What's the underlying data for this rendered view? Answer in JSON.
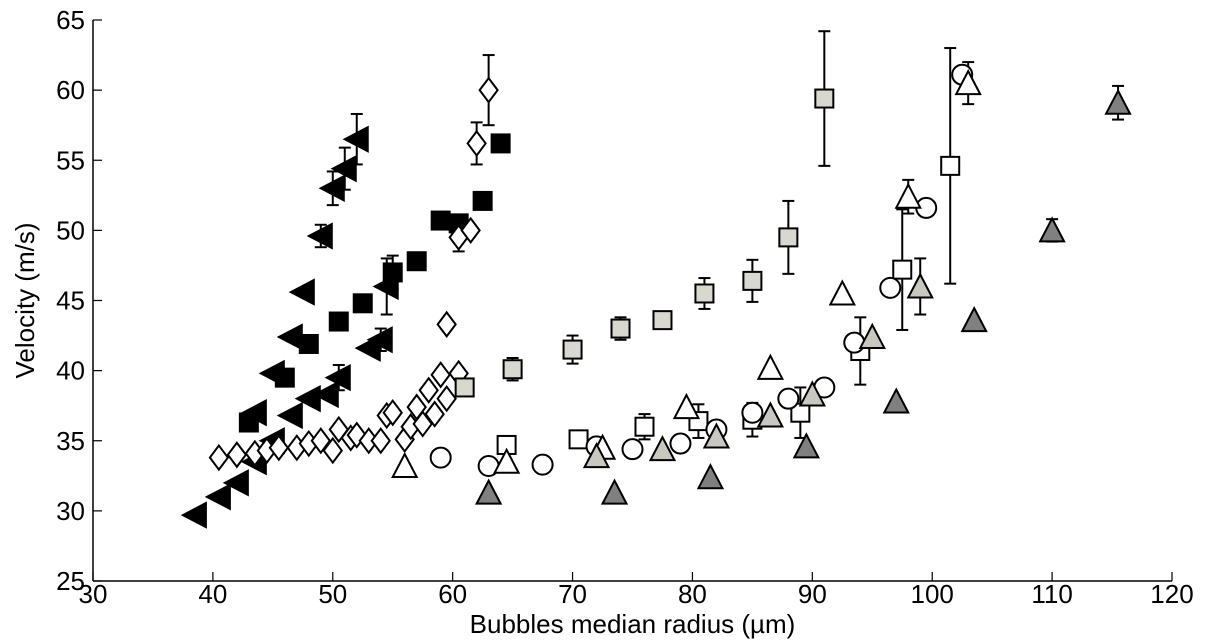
{
  "chart_data": {
    "type": "scatter",
    "title": "",
    "xlabel": "Bubbles median radius (µm)",
    "ylabel": "Velocity (m/s)",
    "xlim": [
      30,
      120
    ],
    "ylim": [
      25,
      65
    ],
    "xticks": [
      30,
      40,
      50,
      60,
      70,
      80,
      90,
      100,
      110,
      120
    ],
    "yticks": [
      25,
      30,
      35,
      40,
      45,
      50,
      55,
      60,
      65
    ],
    "grid": false,
    "legend": "none",
    "series": [
      {
        "marker": "triangle-left",
        "fill": "#000000",
        "points": [
          [
            38.5,
            29.7
          ],
          [
            40.5,
            31.0
          ],
          [
            42,
            32.0
          ],
          [
            43.5,
            33.5
          ],
          [
            43.5,
            37.0
          ],
          [
            45,
            35.0
          ],
          [
            45,
            39.8
          ],
          [
            46.5,
            36.8
          ],
          [
            46.5,
            42.4
          ],
          [
            47.5,
            45.6
          ],
          [
            48,
            38.0
          ],
          [
            49,
            49.6
          ],
          [
            49.5,
            38.3
          ],
          [
            50,
            53.0
          ],
          [
            50.5,
            39.5
          ],
          [
            51,
            54.4
          ],
          [
            52,
            56.5
          ],
          [
            53,
            41.6
          ],
          [
            54,
            42.2
          ],
          [
            54.5,
            46.0
          ]
        ],
        "errors": [
          0,
          0,
          0,
          0,
          0,
          0,
          0,
          0,
          0,
          0,
          0,
          0.8,
          0,
          1.2,
          0.9,
          1.5,
          1.8,
          0,
          0.8,
          2.0
        ]
      },
      {
        "marker": "square",
        "fill": "#000000",
        "points": [
          [
            43,
            36.3
          ],
          [
            46,
            39.5
          ],
          [
            48,
            41.9
          ],
          [
            50.5,
            43.5
          ],
          [
            52.5,
            44.8
          ],
          [
            55,
            47.0
          ],
          [
            57,
            47.8
          ],
          [
            59,
            50.7
          ],
          [
            60.5,
            50.5
          ],
          [
            62.5,
            52.1
          ],
          [
            64,
            56.2
          ]
        ],
        "errors": [
          0,
          0,
          0,
          0.6,
          0,
          1.2,
          0,
          0,
          0,
          0.5,
          0.6
        ]
      },
      {
        "marker": "diamond",
        "fill": "#ffffff",
        "points": [
          [
            40.5,
            33.8
          ],
          [
            42,
            34.0
          ],
          [
            43.5,
            34.1
          ],
          [
            44.5,
            34.3
          ],
          [
            45.5,
            34.5
          ],
          [
            47,
            34.5
          ],
          [
            48,
            34.8
          ],
          [
            49,
            35.0
          ],
          [
            50,
            34.3
          ],
          [
            50.5,
            35.8
          ],
          [
            51.5,
            35.2
          ],
          [
            52,
            35.4
          ],
          [
            53,
            35.0
          ],
          [
            54,
            35.0
          ],
          [
            54.5,
            36.8
          ],
          [
            55,
            37.0
          ],
          [
            56,
            35.1
          ],
          [
            56.5,
            36.0
          ],
          [
            57,
            37.4
          ],
          [
            57.5,
            36.2
          ],
          [
            58,
            38.6
          ],
          [
            58.5,
            36.9
          ],
          [
            59,
            39.7
          ],
          [
            59.5,
            38.0
          ],
          [
            59.5,
            43.3
          ],
          [
            60.5,
            39.8
          ],
          [
            60.5,
            49.5
          ],
          [
            61.5,
            50.0
          ],
          [
            62,
            56.2
          ],
          [
            63,
            60.0
          ]
        ],
        "errors": [
          0,
          0,
          0,
          0,
          0,
          0,
          0,
          0,
          0,
          0,
          0,
          0,
          0,
          0,
          0,
          0,
          0,
          0,
          0,
          0,
          0,
          0,
          0,
          0,
          0,
          0,
          1.0,
          0,
          1.5,
          2.5
        ]
      },
      {
        "marker": "square",
        "fill": "#d8d8d0",
        "points": [
          [
            61,
            38.8
          ],
          [
            65,
            40.1
          ],
          [
            70,
            41.5
          ],
          [
            74,
            43.0
          ],
          [
            77.5,
            43.6
          ],
          [
            81,
            45.5
          ],
          [
            85,
            46.4
          ],
          [
            88,
            49.5
          ],
          [
            91,
            59.4
          ]
        ],
        "errors": [
          0,
          0.8,
          1.0,
          0.8,
          0,
          1.1,
          1.5,
          2.6,
          4.8
        ]
      },
      {
        "marker": "square",
        "fill": "#ffffff",
        "points": [
          [
            64.5,
            34.7
          ],
          [
            70.5,
            35.1
          ],
          [
            76,
            36.0
          ],
          [
            80.5,
            36.4
          ],
          [
            85,
            36.5
          ],
          [
            89,
            37.0
          ],
          [
            94,
            41.4
          ],
          [
            97.5,
            47.2
          ],
          [
            101.5,
            54.6
          ]
        ],
        "errors": [
          0,
          0,
          0.9,
          1.2,
          1.2,
          1.8,
          2.4,
          4.3,
          8.4
        ]
      },
      {
        "marker": "circle",
        "fill": "#ffffff",
        "points": [
          [
            59,
            33.8
          ],
          [
            63,
            33.2
          ],
          [
            67.5,
            33.3
          ],
          [
            72,
            34.6
          ],
          [
            75,
            34.4
          ],
          [
            79,
            34.8
          ],
          [
            82,
            35.8
          ],
          [
            85,
            37.0
          ],
          [
            88,
            38.0
          ],
          [
            91,
            38.8
          ],
          [
            93.5,
            42.0
          ],
          [
            96.5,
            45.9
          ],
          [
            99.5,
            51.6
          ],
          [
            102.5,
            61.1
          ]
        ],
        "errors": [
          0,
          0,
          0,
          0,
          0,
          0,
          0,
          0,
          0,
          0,
          0,
          0,
          0.6,
          0.5
        ]
      },
      {
        "marker": "triangle-up",
        "fill": "#ffffff",
        "points": [
          [
            56,
            33.2
          ],
          [
            64.5,
            33.5
          ],
          [
            72.5,
            34.5
          ],
          [
            79.5,
            37.4
          ],
          [
            86.5,
            40.2
          ],
          [
            92.5,
            45.5
          ],
          [
            98,
            52.4
          ],
          [
            103,
            60.5
          ]
        ],
        "errors": [
          0,
          0,
          0,
          0,
          0,
          0,
          1.2,
          1.5
        ]
      },
      {
        "marker": "triangle-up",
        "fill": "#c8c8c0",
        "points": [
          [
            72,
            33.9
          ],
          [
            77.5,
            34.4
          ],
          [
            82,
            35.3
          ],
          [
            86.5,
            36.8
          ],
          [
            90,
            38.3
          ],
          [
            95,
            42.4
          ],
          [
            99,
            46.0
          ]
        ],
        "errors": [
          0,
          0,
          0,
          0,
          0,
          0,
          2.0
        ]
      },
      {
        "marker": "triangle-up",
        "fill": "#808080",
        "points": [
          [
            63,
            31.3
          ],
          [
            73.5,
            31.3
          ],
          [
            81.5,
            32.4
          ],
          [
            89.5,
            34.6
          ],
          [
            97,
            37.8
          ],
          [
            103.5,
            43.6
          ],
          [
            110,
            50.0
          ],
          [
            115.5,
            59.1
          ]
        ],
        "errors": [
          0,
          0,
          0,
          0,
          0,
          0,
          0.8,
          1.2
        ]
      }
    ]
  }
}
